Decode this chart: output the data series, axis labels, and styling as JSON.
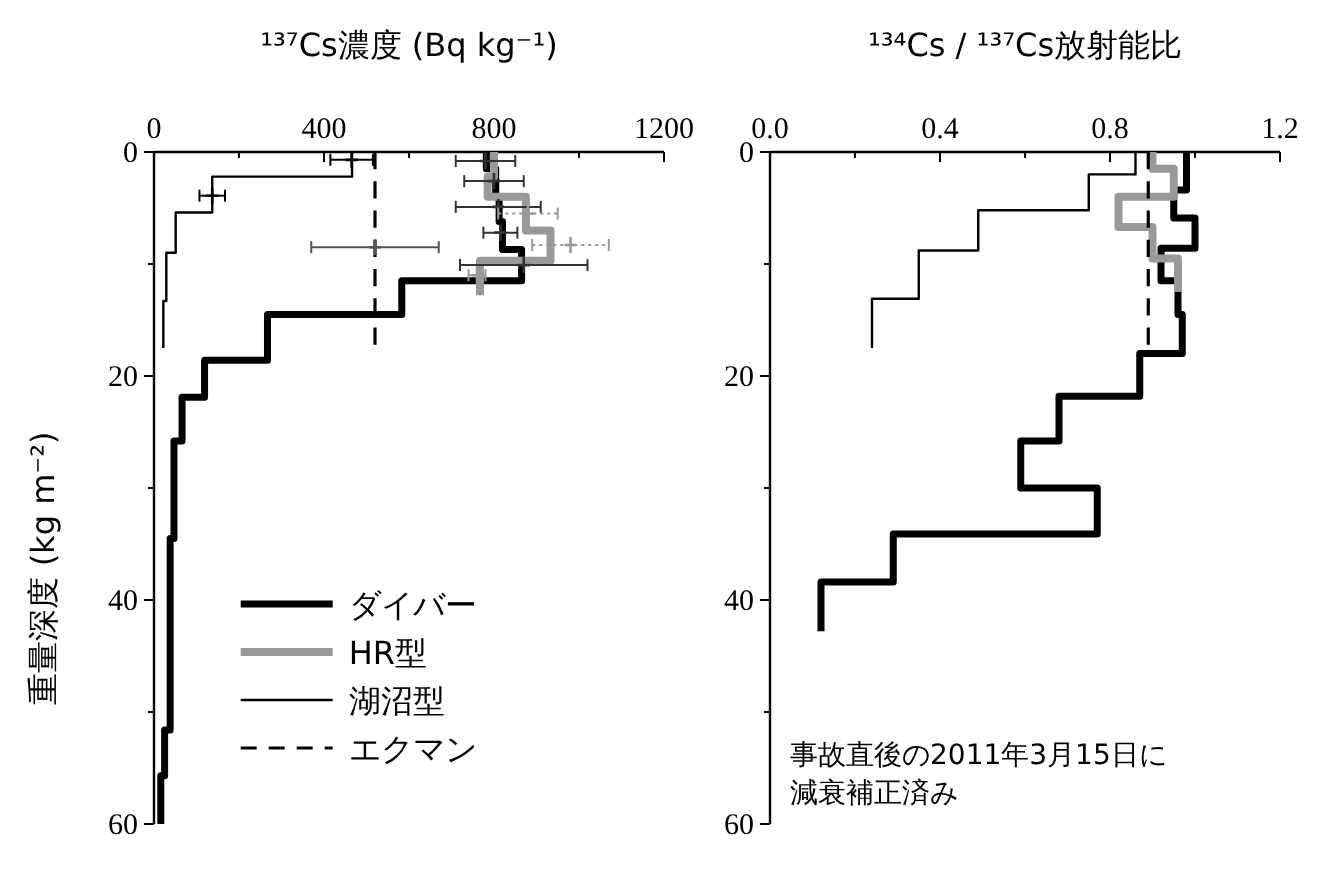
{
  "chart_data": [
    {
      "type": "line",
      "xlabel": "¹³⁷Cs濃度 (Bq kg⁻¹)",
      "ylabel": "重量深度 (kg m⁻²)",
      "xlim": [
        0,
        1200
      ],
      "ylim": [
        60,
        0
      ],
      "xticks": [
        0,
        {
          "value": 200,
          "label": null
        },
        400,
        {
          "value": 600,
          "label": null
        },
        800,
        {
          "value": 1000,
          "label": null
        },
        1200
      ],
      "yticks": [
        0,
        {
          "value": 10,
          "label": null
        },
        20,
        {
          "value": 30,
          "label": null
        },
        40,
        {
          "value": 50,
          "label": null
        },
        60
      ],
      "legend": "bottom",
      "series": [
        {
          "name": "ダイバー",
          "color": "#000000",
          "x": [
            782,
            782,
            804,
            804,
            812,
            812,
            820,
            820,
            865,
            865,
            583,
            583,
            267,
            267,
            119,
            119,
            66,
            66,
            47,
            47,
            38,
            38,
            25,
            25,
            16,
            16
          ],
          "values": [
            0,
            1.5,
            1.5,
            4.0,
            4.0,
            6.2,
            6.2,
            8.7,
            8.7,
            11.5,
            11.5,
            14.5,
            14.5,
            18.6,
            18.6,
            21.9,
            21.9,
            25.8,
            25.8,
            34.5,
            34.5,
            51.6,
            51.6,
            55.7,
            55.7,
            60
          ]
        },
        {
          "name": "HR型",
          "color": "#999999",
          "x": [
            800,
            800,
            785,
            785,
            875,
            875,
            933,
            933,
            767,
            767
          ],
          "values": [
            0,
            2.2,
            2.2,
            4.0,
            4.0,
            7.0,
            7.0,
            9.7,
            9.7,
            12.8
          ]
        },
        {
          "name": "湖沼型",
          "color": "#000000",
          "x": [
            466,
            466,
            137,
            137,
            51,
            51,
            29,
            29,
            22,
            22
          ],
          "values": [
            0,
            2.2,
            2.2,
            5.4,
            5.4,
            9.0,
            9.0,
            13.3,
            13.3,
            17.5
          ]
        },
        {
          "name": "エクマン",
          "color": "#000000",
          "line_style": "dashed",
          "x": [
            520,
            520
          ],
          "values": [
            0,
            17.2
          ]
        },
        {
          "type": "scatter",
          "marker": "cross",
          "color": "#000000",
          "x": [
            465,
            137
          ],
          "values": [
            0.7,
            3.9
          ],
          "xerrors": [
            50,
            30
          ]
        },
        {
          "type": "scatter",
          "marker": "cross",
          "color": "#555555",
          "x": [
            520
          ],
          "values": [
            8.5
          ],
          "xerrors": [
            150
          ]
        },
        {
          "type": "scatter",
          "marker": "cross",
          "color": "#333333",
          "x": [
            780,
            800,
            810,
            815,
            870
          ],
          "values": [
            0.8,
            2.6,
            4.9,
            7.2,
            10.1
          ],
          "xerrors": [
            70,
            70,
            100,
            40,
            150
          ]
        },
        {
          "type": "scatter",
          "marker": "cross",
          "color": "#999999",
          "line_style": "dotted",
          "x": [
            880,
            980,
            760
          ],
          "values": [
            5.5,
            8.3,
            11.0
          ],
          "xerrors": [
            70,
            90,
            20
          ]
        }
      ]
    },
    {
      "type": "line",
      "xlabel": "¹³⁴Cs / ¹³⁷Cs放射能比",
      "xlim": [
        0,
        1.2
      ],
      "ylim": [
        60,
        0
      ],
      "xticks": [
        {
          "value": 0,
          "label": "0.0"
        },
        {
          "value": 0.2,
          "label": null
        },
        0.4,
        {
          "value": 0.6,
          "label": null
        },
        0.8,
        {
          "value": 1.0,
          "label": null
        },
        1.2
      ],
      "yticks": [
        0,
        {
          "value": 10,
          "label": null
        },
        20,
        {
          "value": 30,
          "label": null
        },
        40,
        {
          "value": 50,
          "label": null
        },
        60
      ],
      "annotations": [
        "事故直後の2011年3月15日に",
        "減衰補正済み"
      ],
      "series": [
        {
          "color": "#000000",
          "x": [
            0.98,
            0.98,
            0.95,
            0.95,
            1.0,
            1.0,
            0.92,
            0.92,
            0.96,
            0.96,
            0.97,
            0.97,
            0.87,
            0.87,
            0.68,
            0.68,
            0.59,
            0.59,
            0.77,
            0.77,
            0.29,
            0.29,
            0.12,
            0.12
          ],
          "values": [
            0,
            3.4,
            3.4,
            5.9,
            5.9,
            8.6,
            8.6,
            11.5,
            11.5,
            14.5,
            14.5,
            18.0,
            18.0,
            21.8,
            21.8,
            25.8,
            25.8,
            30.0,
            30.0,
            34.1,
            34.1,
            38.4,
            38.4,
            42.8
          ]
        },
        {
          "color": "#999999",
          "x": [
            0.9,
            0.9,
            0.95,
            0.95,
            0.82,
            0.82,
            0.9,
            0.9,
            0.96,
            0.96
          ],
          "values": [
            0,
            1.5,
            1.5,
            4.0,
            4.0,
            6.7,
            6.7,
            9.5,
            9.5,
            12.5
          ]
        },
        {
          "color": "#000000",
          "x": [
            0.86,
            0.86,
            0.75,
            0.75,
            0.49,
            0.49,
            0.35,
            0.35,
            0.24,
            0.24
          ],
          "values": [
            0,
            2.0,
            2.0,
            5.2,
            5.2,
            8.8,
            8.8,
            13.1,
            13.1,
            17.5
          ]
        },
        {
          "color": "#000000",
          "line_style": "dashed",
          "x": [
            0.89,
            0.89
          ],
          "values": [
            0,
            17.2
          ]
        }
      ]
    }
  ]
}
